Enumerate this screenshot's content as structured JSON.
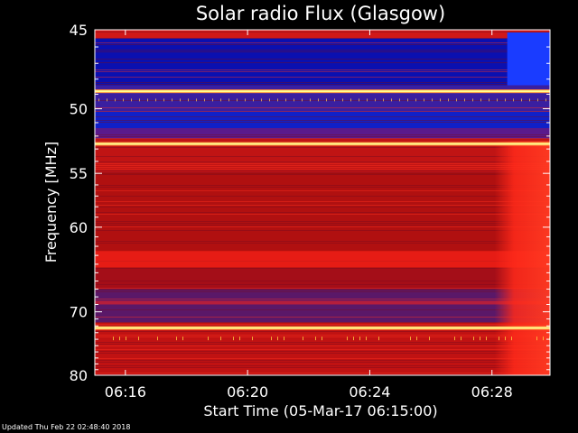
{
  "chart_data": {
    "type": "heatmap",
    "title": "Solar radio Flux (Glasgow)",
    "xlabel": "Start Time (05-Mar-17 06:15:00)",
    "ylabel": "Frequency [MHz]",
    "x_ticks": [
      "06:16",
      "06:20",
      "06:24",
      "06:28"
    ],
    "x_tick_minutes": [
      1,
      5,
      9,
      13
    ],
    "xlim_minutes": [
      0,
      14.9
    ],
    "y_ticks": [
      45,
      50,
      55,
      60,
      70,
      80
    ],
    "ylim": [
      45,
      80
    ],
    "y_scale": "reciprocal",
    "colormap": "blue-red-yellow",
    "bright_lines_mhz": [
      48.8,
      52.6,
      72.3
    ],
    "enhanced_band_mhz": [
      [
        62.5,
        64.4
      ],
      [
        68.5,
        69.0
      ]
    ],
    "burst_start_minute": 13.5,
    "colors": {
      "low": "#0a10b0",
      "mid": "#b01010",
      "high": "#ff2a1a",
      "peak": "#ffff90"
    }
  },
  "footer": "Updated Thu Feb 22 02:48:40 2018"
}
